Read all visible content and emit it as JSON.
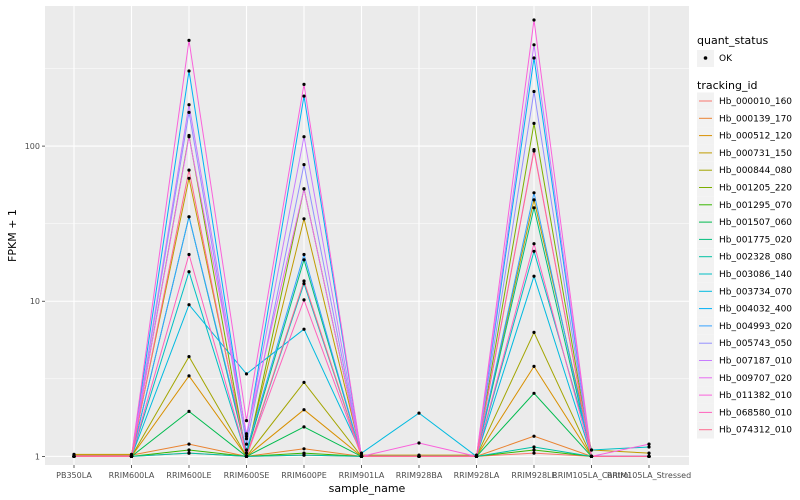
{
  "chart_data": {
    "type": "line",
    "xlabel": "sample_name",
    "ylabel": "FPKM + 1",
    "y_scale": "log10",
    "ylim": [
      0.88,
      800
    ],
    "y_ticks": [
      1,
      10,
      100
    ],
    "y_tick_labels": [
      "1",
      "10",
      "100"
    ],
    "categories": [
      "PB350LA",
      "RRIM600LA",
      "RRIM600LE",
      "RRIM600SE",
      "RRIM600PE",
      "RRIM901LA",
      "RRIM928BA",
      "RRIM928LA",
      "RRIM928LE",
      "RRIM105LA_Control",
      "RRIM105LA_Stressed"
    ],
    "x_tick_labels": [
      "PB350LA",
      "RRIM600LA",
      "RRIM600LE",
      "RRIM600SE",
      "RRIM600PE",
      "RRIM901LA",
      "RRIM928BA",
      "RRIM928LA",
      "RRIM928LE",
      "RRIM105LA_Control",
      "RRIM105LA_Stressed"
    ],
    "grid": true,
    "background": "#EBEBEB",
    "point_color": "#000000",
    "legend": {
      "placement": "right",
      "quant_status_title": "quant_status",
      "quant_status_items": [
        "OK"
      ],
      "tracking_title": "tracking_id"
    },
    "series": [
      {
        "name": "Hb_000010_160",
        "color": "#F8766D",
        "values": [
          1.0,
          1.0,
          1.05,
          1.0,
          1.02,
          1.0,
          1.0,
          1.0,
          1.05,
          1.0,
          1.0
        ]
      },
      {
        "name": "Hb_000139_170",
        "color": "#EA8331",
        "values": [
          1.02,
          1.02,
          1.2,
          1.0,
          1.12,
          1.0,
          1.0,
          1.0,
          1.35,
          1.0,
          1.0
        ]
      },
      {
        "name": "Hb_000512_120",
        "color": "#D89000",
        "values": [
          1.0,
          1.0,
          3.3,
          1.0,
          2.0,
          1.0,
          1.0,
          1.0,
          3.8,
          1.0,
          1.0
        ]
      },
      {
        "name": "Hb_000731_150",
        "color": "#C09B00",
        "values": [
          1.03,
          1.03,
          62,
          1.05,
          34,
          1.02,
          1.02,
          1.02,
          45,
          1.1,
          1.05
        ]
      },
      {
        "name": "Hb_000844_080",
        "color": "#A3A500",
        "values": [
          1.0,
          1.0,
          4.4,
          1.0,
          3.0,
          1.0,
          1.0,
          1.0,
          6.3,
          1.0,
          1.0
        ]
      },
      {
        "name": "Hb_001205_220",
        "color": "#7CAE00",
        "values": [
          1.0,
          1.0,
          117,
          1.0,
          53,
          1.0,
          1.0,
          1.0,
          140,
          1.0,
          1.0
        ]
      },
      {
        "name": "Hb_001295_070",
        "color": "#39B600",
        "values": [
          1.0,
          1.0,
          1.1,
          1.0,
          1.05,
          1.0,
          1.0,
          1.0,
          1.1,
          1.0,
          1.0
        ]
      },
      {
        "name": "Hb_001507_060",
        "color": "#00BB4E",
        "values": [
          1.0,
          1.0,
          1.95,
          1.0,
          1.55,
          1.0,
          1.0,
          1.0,
          2.55,
          1.0,
          1.0
        ]
      },
      {
        "name": "Hb_001775_020",
        "color": "#00BF7D",
        "values": [
          1.0,
          1.0,
          35,
          1.05,
          18.5,
          1.0,
          1.0,
          1.0,
          40,
          1.0,
          1.0
        ]
      },
      {
        "name": "Hb_002328_080",
        "color": "#00C1A3",
        "values": [
          1.0,
          1.0,
          1.05,
          1.0,
          1.02,
          1.0,
          1.0,
          1.0,
          1.15,
          1.0,
          1.0
        ]
      },
      {
        "name": "Hb_003086_140",
        "color": "#00BFC4",
        "values": [
          1.0,
          1.0,
          15.5,
          1.0,
          13,
          1.0,
          1.0,
          1.0,
          21,
          1.1,
          1.15
        ]
      },
      {
        "name": "Hb_003734_070",
        "color": "#00BAE0",
        "values": [
          1.0,
          1.0,
          9.5,
          3.4,
          6.6,
          1.05,
          1.9,
          1.0,
          14.5,
          1.0,
          1.0
        ]
      },
      {
        "name": "Hb_004032_400",
        "color": "#00B0F6",
        "values": [
          1.0,
          1.0,
          305,
          1.3,
          210,
          1.0,
          1.0,
          1.0,
          370,
          1.0,
          1.0
        ]
      },
      {
        "name": "Hb_004993_020",
        "color": "#35A2FF",
        "values": [
          1.0,
          1.0,
          35,
          1.1,
          20,
          1.0,
          1.0,
          1.0,
          50,
          1.0,
          1.0
        ]
      },
      {
        "name": "Hb_005743_050",
        "color": "#9590FF",
        "values": [
          1.0,
          1.0,
          165,
          1.2,
          76,
          1.0,
          1.0,
          1.0,
          225,
          1.0,
          1.0
        ]
      },
      {
        "name": "Hb_007187_010",
        "color": "#C77CFF",
        "values": [
          1.0,
          1.0,
          185,
          1.35,
          115,
          1.0,
          1.0,
          1.0,
          450,
          1.0,
          1.0
        ]
      },
      {
        "name": "Hb_009707_020",
        "color": "#E76BF3",
        "values": [
          1.0,
          1.0,
          115,
          1.4,
          53,
          1.0,
          1.0,
          1.0,
          95,
          1.0,
          1.0
        ]
      },
      {
        "name": "Hb_011382_010",
        "color": "#FA62DB",
        "values": [
          1.0,
          1.0,
          480,
          1.7,
          250,
          1.0,
          1.22,
          1.0,
          650,
          1.0,
          1.2
        ]
      },
      {
        "name": "Hb_068580_010",
        "color": "#FF62BC",
        "values": [
          1.0,
          1.0,
          20,
          1.0,
          10.2,
          1.0,
          1.0,
          1.0,
          23.5,
          1.0,
          1.0
        ]
      },
      {
        "name": "Hb_074312_010",
        "color": "#FF6C91",
        "values": [
          1.0,
          1.0,
          70,
          1.0,
          13.5,
          1.0,
          1.0,
          1.0,
          93,
          1.0,
          1.0
        ]
      }
    ]
  }
}
